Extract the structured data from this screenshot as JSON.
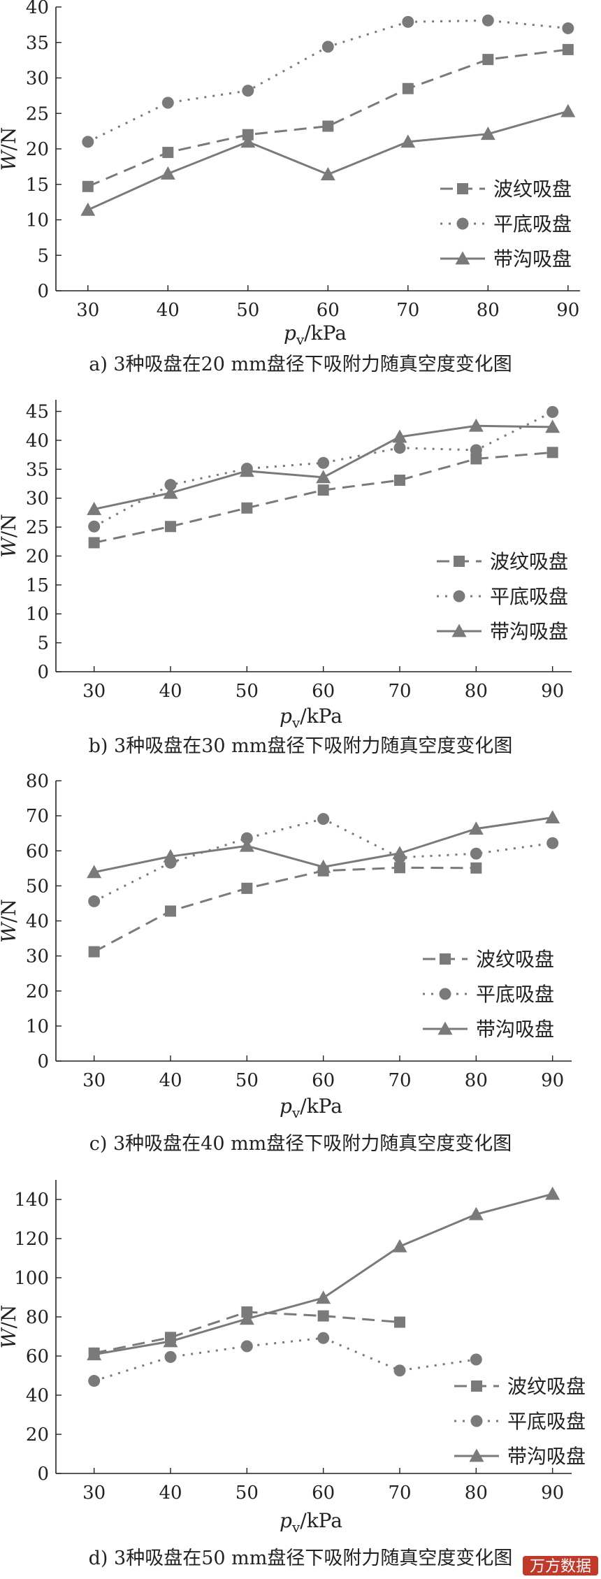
{
  "chart_data": [
    {
      "type": "line",
      "caption": "a)   3种吸盘在20 mm盘径下吸附力随真空度变化图",
      "xlabel_main": "p",
      "xlabel_sub": "v",
      "xlabel_unit": "/kPa",
      "ylabel_main": "W",
      "ylabel_unit": "/N",
      "xlim": [
        26,
        91.5
      ],
      "ylim": [
        0,
        40
      ],
      "x_ticks": [
        30,
        40,
        50,
        60,
        70,
        80,
        90
      ],
      "y_ticks": [
        0,
        5,
        10,
        15,
        20,
        25,
        30,
        35,
        40
      ],
      "x_tick_labels": [
        "30",
        "40",
        "50",
        "60",
        "70",
        "80",
        "90"
      ],
      "y_tick_labels": [
        "0",
        "5",
        "10",
        "15",
        "20",
        "25",
        "30",
        "35",
        "40"
      ],
      "legend": [
        "波纹吸盘",
        "平底吸盘",
        "带沟吸盘"
      ],
      "legend_position": "lower-right",
      "series": [
        {
          "name": "波纹吸盘",
          "x": [
            30,
            40,
            50,
            60,
            70,
            80,
            90
          ],
          "values": [
            14.7,
            19.5,
            22.0,
            23.2,
            28.5,
            32.6,
            34.0
          ]
        },
        {
          "name": "平底吸盘",
          "x": [
            30,
            40,
            50,
            60,
            70,
            80,
            90
          ],
          "values": [
            21.0,
            26.5,
            28.2,
            34.4,
            37.9,
            38.1,
            37.0
          ]
        },
        {
          "name": "带沟吸盘",
          "x": [
            30,
            40,
            50,
            60,
            70,
            80,
            90
          ],
          "values": [
            11.4,
            16.5,
            21.0,
            16.4,
            21.0,
            22.1,
            25.3
          ]
        }
      ]
    },
    {
      "type": "line",
      "caption": "b)   3种吸盘在30 mm盘径下吸附力随真空度变化图",
      "xlabel_main": "p",
      "xlabel_sub": "v",
      "xlabel_unit": "/kPa",
      "ylabel_main": "W",
      "ylabel_unit": "/N",
      "xlim": [
        25,
        92.5
      ],
      "ylim": [
        0,
        47
      ],
      "x_ticks": [
        30,
        40,
        50,
        60,
        70,
        80,
        90
      ],
      "y_ticks": [
        0,
        5,
        10,
        15,
        20,
        25,
        30,
        35,
        40,
        45
      ],
      "x_tick_labels": [
        "30",
        "40",
        "50",
        "60",
        "70",
        "80",
        "90"
      ],
      "y_tick_labels": [
        "0",
        "5",
        "10",
        "15",
        "20",
        "25",
        "30",
        "35",
        "40",
        "45"
      ],
      "legend": [
        "波纹吸盘",
        "平底吸盘",
        "带沟吸盘"
      ],
      "legend_position": "lower-right",
      "series": [
        {
          "name": "波纹吸盘",
          "x": [
            30,
            40,
            50,
            60,
            70,
            80,
            90
          ],
          "values": [
            22.3,
            25.1,
            28.3,
            31.4,
            33.1,
            36.8,
            37.9
          ]
        },
        {
          "name": "平底吸盘",
          "x": [
            30,
            40,
            50,
            60,
            70,
            80,
            90
          ],
          "values": [
            25.1,
            32.3,
            35.1,
            36.1,
            38.7,
            38.3,
            44.9
          ]
        },
        {
          "name": "带沟吸盘",
          "x": [
            30,
            40,
            50,
            60,
            70,
            80,
            90
          ],
          "values": [
            28.1,
            30.9,
            34.7,
            33.6,
            40.6,
            42.5,
            42.3
          ]
        }
      ]
    },
    {
      "type": "line",
      "caption": "c)   3种吸盘在40 mm盘径下吸附力随真空度变化图",
      "xlabel_main": "p",
      "xlabel_sub": "v",
      "xlabel_unit": "/kPa",
      "ylabel_main": "W",
      "ylabel_unit": "/N",
      "xlim": [
        25,
        92.5
      ],
      "ylim": [
        0,
        80
      ],
      "x_ticks": [
        30,
        40,
        50,
        60,
        70,
        80,
        90
      ],
      "y_ticks": [
        0,
        10,
        20,
        30,
        40,
        50,
        60,
        70,
        80
      ],
      "x_tick_labels": [
        "30",
        "40",
        "50",
        "60",
        "70",
        "80",
        "90"
      ],
      "y_tick_labels": [
        "0",
        "10",
        "20",
        "30",
        "40",
        "50",
        "60",
        "70",
        "80"
      ],
      "legend": [
        "波纹吸盘",
        "平底吸盘",
        "带沟吸盘"
      ],
      "legend_position": "lower-right",
      "series": [
        {
          "name": "波纹吸盘",
          "x": [
            30,
            40,
            50,
            60,
            70,
            80
          ],
          "values": [
            31.2,
            42.8,
            49.3,
            54.3,
            55.2,
            55.1
          ]
        },
        {
          "name": "平底吸盘",
          "x": [
            30,
            40,
            50,
            60,
            70,
            80,
            90
          ],
          "values": [
            45.6,
            56.6,
            63.6,
            69.1,
            58.1,
            59.2,
            62.2
          ]
        },
        {
          "name": "带沟吸盘",
          "x": [
            30,
            40,
            50,
            60,
            70,
            80,
            90
          ],
          "values": [
            53.9,
            58.4,
            61.4,
            55.4,
            59.3,
            66.3,
            69.5
          ]
        }
      ]
    },
    {
      "type": "line",
      "caption": "d)   3种吸盘在50 mm盘径下吸附力随真空度变化图",
      "xlabel_main": "p",
      "xlabel_sub": "v",
      "xlabel_unit": "/kPa",
      "ylabel_main": "W",
      "ylabel_unit": "/N",
      "xlim": [
        25,
        92.5
      ],
      "ylim": [
        0,
        150
      ],
      "x_ticks": [
        30,
        40,
        50,
        60,
        70,
        80,
        90
      ],
      "y_ticks": [
        0,
        20,
        40,
        60,
        80,
        100,
        120,
        140
      ],
      "x_tick_labels": [
        "30",
        "40",
        "50",
        "60",
        "70",
        "80",
        "90"
      ],
      "y_tick_labels": [
        "0",
        "20",
        "40",
        "60",
        "80",
        "100",
        "120",
        "140"
      ],
      "legend": [
        "波纹吸盘",
        "平底吸盘",
        "带沟吸盘"
      ],
      "legend_position": "lower-right",
      "series": [
        {
          "name": "波纹吸盘",
          "x": [
            30,
            40,
            50,
            60,
            70
          ],
          "values": [
            61.5,
            69.5,
            82.5,
            80.5,
            77.3
          ]
        },
        {
          "name": "平底吸盘",
          "x": [
            30,
            40,
            50,
            60,
            70,
            80
          ],
          "values": [
            47.3,
            59.5,
            65.0,
            69.2,
            52.6,
            58.2
          ]
        },
        {
          "name": "带沟吸盘",
          "x": [
            30,
            40,
            50,
            60,
            70,
            80,
            90
          ],
          "values": [
            60.8,
            67.5,
            79.0,
            89.7,
            116.0,
            132.4,
            142.8
          ]
        }
      ]
    }
  ],
  "watermark": "万方数据"
}
